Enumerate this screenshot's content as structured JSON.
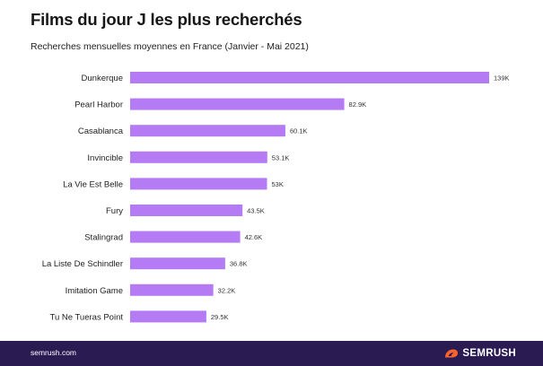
{
  "chart_data": {
    "type": "bar",
    "orientation": "horizontal",
    "title": "Films du jour J les plus recherchés",
    "subtitle": "Recherches mensuelles moyennes en France (Janvier - Mai 2021)",
    "categories": [
      "Dunkerque",
      "Pearl Harbor",
      "Casablanca",
      "Invincible",
      "La Vie Est Belle",
      "Fury",
      "Stalingrad",
      "La Liste De Schindler",
      "Imitation Game",
      "Tu Ne Tueras Point"
    ],
    "values": [
      139000,
      82900,
      60100,
      53100,
      53000,
      43500,
      42600,
      36800,
      32200,
      29500
    ],
    "value_labels": [
      "139K",
      "82.9K",
      "60.1K",
      "53.1K",
      "53K",
      "43.5K",
      "42.6K",
      "36.8K",
      "32.2K",
      "29.5K"
    ],
    "xlim": [
      0,
      139000
    ],
    "grid": false,
    "bar_color": "#b57bf5"
  },
  "footer": {
    "url": "semrush.com",
    "brand": "SEMRUSH",
    "brand_icon": "semrush-flame-icon",
    "background": "#2a1b52",
    "icon_color": "#ff642d"
  }
}
